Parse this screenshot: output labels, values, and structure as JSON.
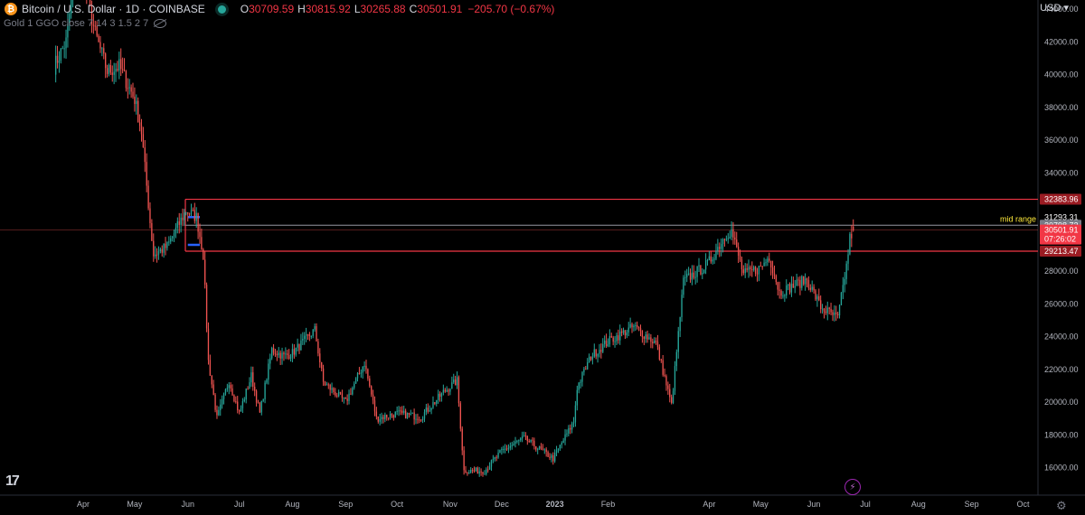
{
  "header": {
    "coin_glyph": "₿",
    "symbol": "Bitcoin / U.S. Dollar · 1D · COINBASE",
    "open_k": "O",
    "open": "30709.59",
    "high_k": "H",
    "high": "30815.92",
    "low_k": "L",
    "low": "30265.88",
    "close_k": "C",
    "close": "30501.91",
    "change": "−205.70 (−0.67%)",
    "indicator": "Gold 1 GGO close 7 14 3 1.5 2 7",
    "currency": "USD"
  },
  "footer": {
    "logo": "17",
    "bolt": "⚡",
    "gear": "⚙"
  },
  "colors": {
    "up": "#26a69a",
    "down": "#ef5350",
    "level": "#f23645",
    "mid": "#9598a1",
    "blue": "#2962ff",
    "mid_label": "#ffeb3b",
    "axis": "#b2b5be"
  },
  "chart_data": {
    "type": "candlestick",
    "y_ticks": [
      16000,
      18000,
      20000,
      22000,
      24000,
      26000,
      28000,
      30000,
      32000,
      34000,
      36000,
      38000,
      40000,
      42000,
      44000
    ],
    "y_tick_labels": [
      "16000.00",
      "18000.00",
      "20000.00",
      "22000.00",
      "24000.00",
      "26000.00",
      "28000.00",
      "30000.00",
      "",
      "34000.00",
      "36000.00",
      "38000.00",
      "40000.00",
      "42000.00",
      "44000.00"
    ],
    "x_labels": [
      "Apr",
      "May",
      "Jun",
      "Jul",
      "Aug",
      "Sep",
      "Oct",
      "Nov",
      "Dec",
      "2023",
      "Feb",
      "Apr",
      "May",
      "Jun",
      "Jul",
      "Aug",
      "Sep",
      "Oct"
    ],
    "x_label_dates": [
      "2022-04-01",
      "2022-05-01",
      "2022-06-01",
      "2022-07-01",
      "2022-08-01",
      "2022-09-01",
      "2022-10-01",
      "2022-11-01",
      "2022-12-01",
      "2023-01-01",
      "2023-02-01",
      "2023-04-01",
      "2023-05-01",
      "2023-06-01",
      "2023-07-01",
      "2023-08-01",
      "2023-09-01",
      "2023-10-01"
    ],
    "price_labels": [
      {
        "value": 32383.96,
        "text": "32383.96",
        "kind": "level"
      },
      {
        "value": 31293.31,
        "text": "31293.31",
        "kind": "plain"
      },
      {
        "value": 30798.72,
        "text": "30798.72",
        "kind": "mid"
      },
      {
        "value": 30635.39,
        "text": "30635.39",
        "kind": "plain"
      },
      {
        "value": 30501.91,
        "text": "30501.91",
        "kind": "last",
        "countdown": "07:26:02"
      },
      {
        "value": 29213.47,
        "text": "29213.47",
        "kind": "level"
      }
    ],
    "horizontal_lines": [
      {
        "value": 32383.96,
        "kind": "level"
      },
      {
        "value": 30798.72,
        "kind": "mid",
        "label": "mid range"
      },
      {
        "value": 29213.47,
        "kind": "level"
      },
      {
        "value": 30501.91,
        "kind": "last"
      }
    ],
    "anchors": [
      [
        "2022-03-15",
        40500
      ],
      [
        "2022-03-22",
        42000
      ],
      [
        "2022-03-28",
        47000
      ],
      [
        "2022-04-01",
        45800
      ],
      [
        "2022-04-08",
        42500
      ],
      [
        "2022-04-15",
        40200
      ],
      [
        "2022-04-22",
        40500
      ],
      [
        "2022-05-01",
        38500
      ],
      [
        "2022-05-05",
        36500
      ],
      [
        "2022-05-10",
        31000
      ],
      [
        "2022-05-12",
        29000
      ],
      [
        "2022-05-20",
        29500
      ],
      [
        "2022-05-31",
        31700
      ],
      [
        "2022-06-06",
        31300
      ],
      [
        "2022-06-10",
        29000
      ],
      [
        "2022-06-13",
        22500
      ],
      [
        "2022-06-18",
        19000
      ],
      [
        "2022-06-25",
        21300
      ],
      [
        "2022-07-01",
        19300
      ],
      [
        "2022-07-08",
        21600
      ],
      [
        "2022-07-13",
        19300
      ],
      [
        "2022-07-20",
        23200
      ],
      [
        "2022-07-27",
        22800
      ],
      [
        "2022-08-01",
        23000
      ],
      [
        "2022-08-14",
        24400
      ],
      [
        "2022-08-19",
        21200
      ],
      [
        "2022-09-01",
        20000
      ],
      [
        "2022-09-12",
        22400
      ],
      [
        "2022-09-19",
        19000
      ],
      [
        "2022-10-01",
        19300
      ],
      [
        "2022-10-15",
        19100
      ],
      [
        "2022-10-28",
        20600
      ],
      [
        "2022-11-05",
        21300
      ],
      [
        "2022-11-09",
        15800
      ],
      [
        "2022-11-21",
        15800
      ],
      [
        "2022-12-01",
        17000
      ],
      [
        "2022-12-14",
        17800
      ],
      [
        "2022-12-31",
        16550
      ],
      [
        "2023-01-12",
        18800
      ],
      [
        "2023-01-14",
        20900
      ],
      [
        "2023-01-22",
        22800
      ],
      [
        "2023-02-01",
        23700
      ],
      [
        "2023-02-16",
        24600
      ],
      [
        "2023-03-01",
        23600
      ],
      [
        "2023-03-10",
        19800
      ],
      [
        "2023-03-17",
        27400
      ],
      [
        "2023-03-31",
        28400
      ],
      [
        "2023-04-11",
        30300
      ],
      [
        "2023-04-14",
        30450
      ],
      [
        "2023-04-21",
        27800
      ],
      [
        "2023-05-01",
        28200
      ],
      [
        "2023-05-06",
        28900
      ],
      [
        "2023-05-12",
        26700
      ],
      [
        "2023-05-28",
        27500
      ],
      [
        "2023-06-05",
        25800
      ],
      [
        "2023-06-15",
        25100
      ],
      [
        "2023-06-20",
        28300
      ],
      [
        "2023-06-22",
        30000
      ],
      [
        "2023-06-24",
        30501.91
      ]
    ],
    "blue_marks": [
      {
        "from": "2022-06-01",
        "to": "2022-06-08",
        "value": 31293.31
      },
      {
        "from": "2022-06-01",
        "to": "2022-06-08",
        "value": 29600
      }
    ]
  }
}
